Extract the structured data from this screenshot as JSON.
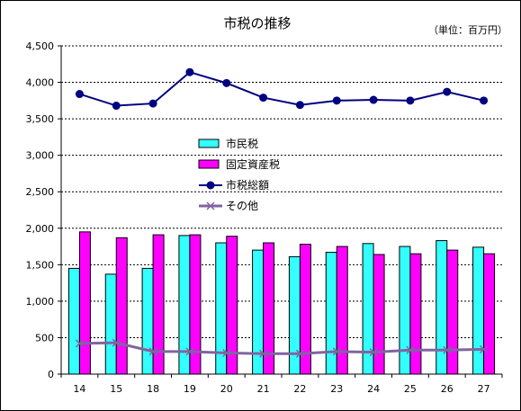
{
  "chart_data": {
    "type": "bar",
    "title": "市税の推移",
    "unit_label": "（単位：百万円）",
    "categories": [
      "14",
      "15",
      "18",
      "19",
      "20",
      "21",
      "22",
      "23",
      "24",
      "25",
      "26",
      "27"
    ],
    "ylim": [
      0,
      4500
    ],
    "y_ticks": [
      "0",
      "500",
      "1,000",
      "1,500",
      "2,000",
      "2,500",
      "3,000",
      "3,500",
      "4,000",
      "4,500"
    ],
    "y_tick_values": [
      0,
      500,
      1000,
      1500,
      2000,
      2500,
      3000,
      3500,
      4000,
      4500
    ],
    "grid": true,
    "legend_position": "center-left",
    "series": [
      {
        "name": "市民税",
        "type": "bar",
        "color": "#33ffff",
        "values": [
          1450,
          1370,
          1450,
          1900,
          1800,
          1700,
          1610,
          1670,
          1790,
          1750,
          1830,
          1740
        ]
      },
      {
        "name": "固定資産税",
        "type": "bar",
        "color": "#ff00ff",
        "values": [
          1950,
          1870,
          1910,
          1910,
          1890,
          1800,
          1780,
          1750,
          1640,
          1650,
          1700,
          1650
        ]
      },
      {
        "name": "市税総額",
        "type": "line",
        "color": "#000080",
        "marker": "circle",
        "values": [
          3840,
          3680,
          3710,
          4140,
          3990,
          3790,
          3690,
          3750,
          3760,
          3750,
          3870,
          3750
        ]
      },
      {
        "name": "その他",
        "type": "line",
        "color": "#8064a2",
        "marker": "x",
        "values": [
          420,
          430,
          310,
          310,
          290,
          280,
          280,
          310,
          300,
          330,
          330,
          340
        ]
      }
    ]
  }
}
